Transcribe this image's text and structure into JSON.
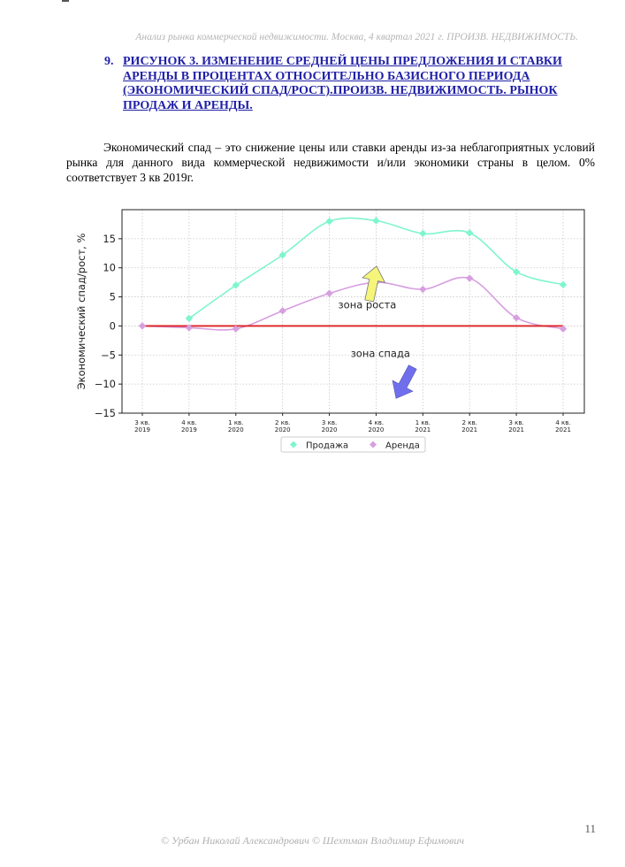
{
  "header": {
    "running_title": "Анализ рынка коммерческой недвижимости.  Москва,  4 квартал 2021 г.   ПРОИЗВ. НЕДВИЖИМОСТЬ."
  },
  "section": {
    "number": "9.",
    "title": "РИСУНОК 3. ИЗМЕНЕНИЕ СРЕДНЕЙ ЦЕНЫ ПРЕДЛОЖЕНИЯ И СТАВКИ АРЕНДЫ В ПРОЦЕНТАХ ОТНОСИТЕЛЬНО БАЗИСНОГО ПЕРИОДА (ЭКОНОМИЧЕСКИЙ СПАД/РОСТ).ПРОИЗВ. НЕДВИЖИМОСТЬ. РЫНОК ПРОДАЖ И АРЕНДЫ."
  },
  "body_text": "Экономический спад – это снижение цены или ставки аренды из-за неблагоприятных условий рынка для данного вида коммерческой недвижимости и/или экономики страны в целом. 0% соответствует 3 кв 2019г.",
  "chart_data": {
    "type": "line",
    "ylabel": "Экономический спад/рост, %",
    "xlabel": "",
    "ylim": [
      -15,
      20
    ],
    "yticks": [
      15,
      10,
      5,
      0,
      -5,
      -10,
      -15
    ],
    "ytick_labels": [
      "15",
      "10",
      "5",
      "0",
      "−5",
      "−10",
      "−15"
    ],
    "grid": true,
    "categories": [
      [
        "3 кв.",
        "2019"
      ],
      [
        "4 кв.",
        "2019"
      ],
      [
        "1 кв.",
        "2020"
      ],
      [
        "2 кв.",
        "2020"
      ],
      [
        "3 кв.",
        "2020"
      ],
      [
        "4 кв.",
        "2020"
      ],
      [
        "1 кв.",
        "2021"
      ],
      [
        "2 кв.",
        "2021"
      ],
      [
        "3 кв.",
        "2021"
      ],
      [
        "4 кв.",
        "2021"
      ]
    ],
    "series": [
      {
        "name": "Продажа",
        "color": "#7ff5cf",
        "values": [
          null,
          1.3,
          7.0,
          12.2,
          18.0,
          18.1,
          15.9,
          16.0,
          9.3,
          7.1
        ]
      },
      {
        "name": "Аренда",
        "color": "#d79fe0",
        "values": [
          0.0,
          -0.3,
          -0.5,
          2.6,
          5.6,
          7.5,
          6.3,
          8.2,
          1.4,
          -0.5
        ]
      }
    ],
    "baseline": {
      "value": 0,
      "color": "#dd2222"
    },
    "annotations": [
      {
        "text": "зона роста",
        "arrow": "up",
        "arrow_color": "#f5f57a",
        "x_index": 5,
        "y": 7
      },
      {
        "text": "зона спада",
        "arrow": "down",
        "arrow_color": "#6f6fee",
        "x_index": 6,
        "y": -5
      }
    ],
    "legend_position": "bottom-center"
  },
  "page_number": "11",
  "footer": "© Урбан Николай Александрович   © Шехтман Владимир Ефимович"
}
